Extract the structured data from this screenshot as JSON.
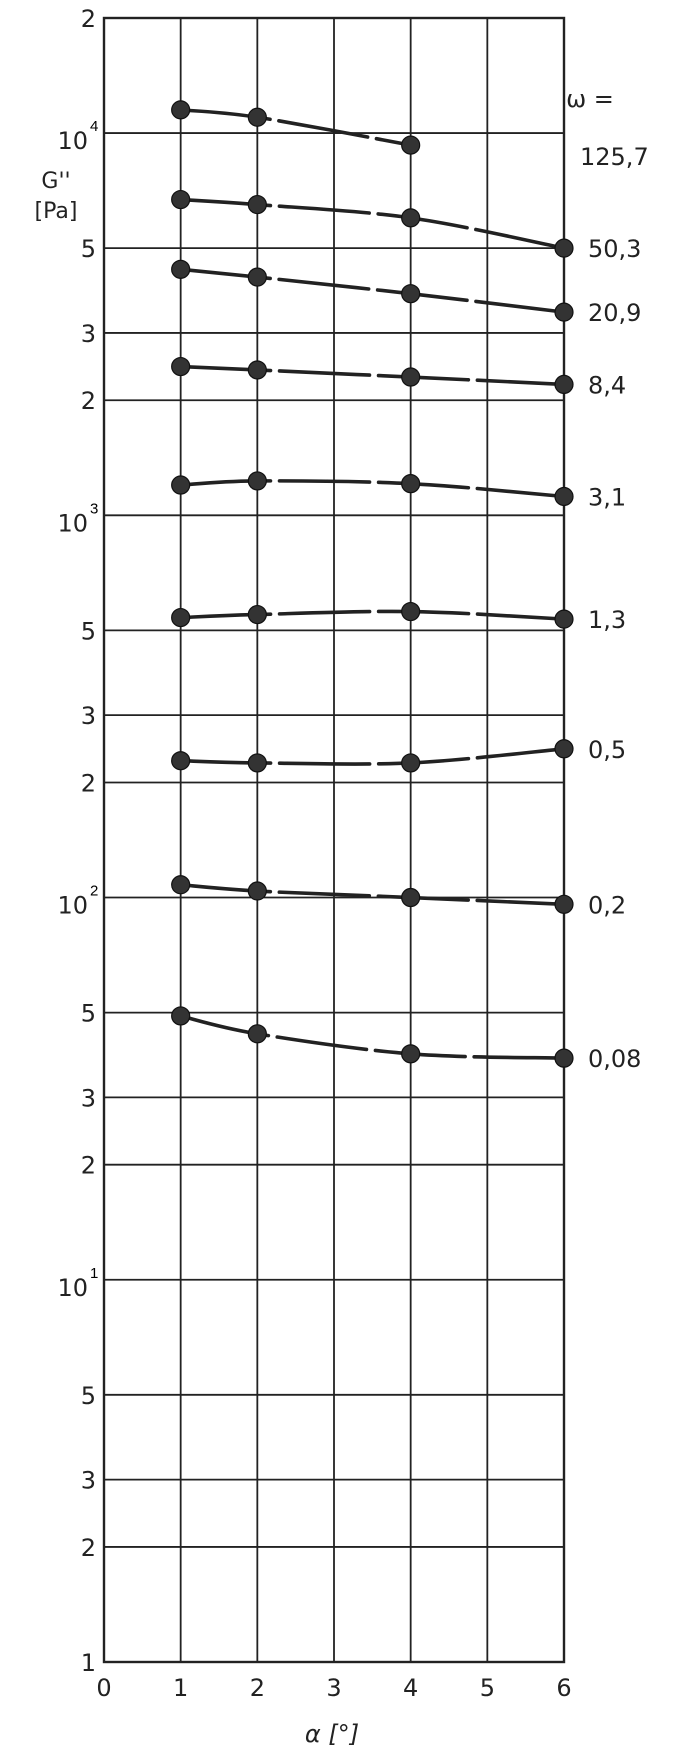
{
  "chart_data": {
    "type": "line",
    "ylabel": "G''",
    "yunit": "[Pa]",
    "xlabel": "α [°]",
    "xscale": "linear",
    "yscale": "log",
    "xlim": [
      0,
      6
    ],
    "ylim": [
      1,
      20000
    ],
    "grid": true,
    "x_ticks": [
      "0",
      "1",
      "2",
      "3",
      "4",
      "5",
      "6"
    ],
    "y_ticks": [
      {
        "value": 20000,
        "base": "2",
        "exp": ""
      },
      {
        "value": 10000,
        "base": "10",
        "exp": "4"
      },
      {
        "value": 5000,
        "base": "5",
        "exp": ""
      },
      {
        "value": 3000,
        "base": "3",
        "exp": ""
      },
      {
        "value": 2000,
        "base": "2",
        "exp": ""
      },
      {
        "value": 1000,
        "base": "10",
        "exp": "3"
      },
      {
        "value": 500,
        "base": "5",
        "exp": ""
      },
      {
        "value": 300,
        "base": "3",
        "exp": ""
      },
      {
        "value": 200,
        "base": "2",
        "exp": ""
      },
      {
        "value": 100,
        "base": "10",
        "exp": "2"
      },
      {
        "value": 50,
        "base": "5",
        "exp": ""
      },
      {
        "value": 30,
        "base": "3",
        "exp": ""
      },
      {
        "value": 20,
        "base": "2",
        "exp": ""
      },
      {
        "value": 10,
        "base": "10",
        "exp": "1"
      },
      {
        "value": 5,
        "base": "5",
        "exp": ""
      },
      {
        "value": 3,
        "base": "3",
        "exp": ""
      },
      {
        "value": 2,
        "base": "2",
        "exp": ""
      },
      {
        "value": 1,
        "base": "1",
        "exp": ""
      }
    ],
    "legend_title": "ω =",
    "series": [
      {
        "name": "125,7",
        "x": [
          1,
          2,
          4
        ],
        "y": [
          11500,
          11000,
          9300
        ]
      },
      {
        "name": "50,3",
        "x": [
          1,
          2,
          4,
          6
        ],
        "y": [
          6700,
          6500,
          6000,
          5000
        ]
      },
      {
        "name": "20,9",
        "x": [
          1,
          2,
          4,
          6
        ],
        "y": [
          4400,
          4200,
          3800,
          3400
        ]
      },
      {
        "name": "8,4",
        "x": [
          1,
          2,
          4,
          6
        ],
        "y": [
          2450,
          2400,
          2300,
          2200
        ]
      },
      {
        "name": "3,1",
        "x": [
          1,
          2,
          4,
          6
        ],
        "y": [
          1200,
          1230,
          1210,
          1120
        ]
      },
      {
        "name": "1,3",
        "x": [
          1,
          2,
          4,
          6
        ],
        "y": [
          540,
          550,
          560,
          535
        ]
      },
      {
        "name": "0,5",
        "x": [
          1,
          2,
          4,
          6
        ],
        "y": [
          228,
          225,
          225,
          245
        ]
      },
      {
        "name": "0,2",
        "x": [
          1,
          2,
          4,
          6
        ],
        "y": [
          108,
          104,
          100,
          96
        ]
      },
      {
        "name": "0,08",
        "x": [
          1,
          2,
          4,
          6
        ],
        "y": [
          49,
          44,
          39,
          38
        ]
      }
    ]
  }
}
